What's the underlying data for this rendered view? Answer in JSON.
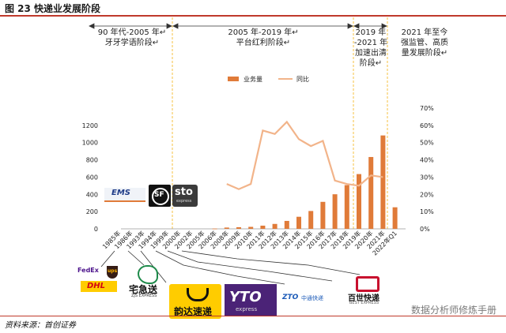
{
  "figure": {
    "title": "图 23 快递业发展阶段",
    "source": "资料来源：首创证券",
    "watermark": "数据分析师修炼手册"
  },
  "phases": [
    {
      "label_lines": [
        "90 年代-2005 年↵",
        "牙牙学语阶段↵"
      ]
    },
    {
      "label_lines": [
        "2005 年-2019 年↵",
        "平台红利阶段↵"
      ]
    },
    {
      "label_lines": [
        "2019 年",
        "-2021 年",
        "加速出清",
        "阶段↵"
      ]
    },
    {
      "label_lines": [
        "2021 年至今",
        "强监管、高质",
        "量发展阶段↵"
      ]
    }
  ],
  "logos": {
    "ems": "EMS",
    "sf": "SF",
    "sto": "sto",
    "sto_sub": "express",
    "fedex": "FedEx",
    "ups": "ups",
    "dhl": "DHL",
    "zjs": "宅急送",
    "zjs_sub": "ZJS EXPRESS",
    "yunda": "韵达速递",
    "yto": "YTO",
    "yto_sub": "express",
    "zto": "ZTO",
    "zto_cn": "中通快递",
    "best": "百世快递",
    "best_sub": "BEST EXPRESS"
  },
  "colors": {
    "bar": "#e07b39",
    "line": "#f2b48a",
    "title_rule": "#c0392b",
    "phase_divider": "#f5c242",
    "connector": "#333333"
  },
  "chart_data": {
    "type": "bar",
    "categories": [
      "1985年",
      "1986年",
      "1993年",
      "1994年",
      "1999年",
      "2000年",
      "2002年",
      "2005年",
      "2006年",
      "2008年",
      "2009年",
      "2010年",
      "2011年",
      "2012年",
      "2013年",
      "2014年",
      "2015年",
      "2016年",
      "2017年",
      "2018年",
      "2019年",
      "2020年",
      "2021年",
      "2022年Q1"
    ],
    "series": [
      {
        "name": "业务量",
        "type": "bar",
        "axis": "left",
        "values": [
          null,
          null,
          null,
          null,
          null,
          null,
          null,
          null,
          3,
          15,
          19,
          23,
          37,
          57,
          92,
          140,
          207,
          313,
          401,
          507,
          635,
          833,
          1083,
          250
        ]
      },
      {
        "name": "同比",
        "type": "line",
        "axis": "right",
        "values": [
          null,
          null,
          null,
          null,
          null,
          null,
          null,
          null,
          null,
          26,
          23,
          26,
          57,
          55,
          62,
          52,
          48,
          51,
          28,
          26,
          25,
          31,
          30,
          null
        ]
      }
    ],
    "left_axis": {
      "ticks": [
        0,
        200,
        400,
        600,
        800,
        1000,
        1200
      ],
      "ylim": [
        0,
        1400
      ]
    },
    "right_axis": {
      "ticks": [
        "0%",
        "10%",
        "20%",
        "30%",
        "40%",
        "50%",
        "60%",
        "70%"
      ],
      "ylim": [
        0,
        70
      ]
    },
    "legend": {
      "placement": "top-center"
    },
    "grid": false
  }
}
